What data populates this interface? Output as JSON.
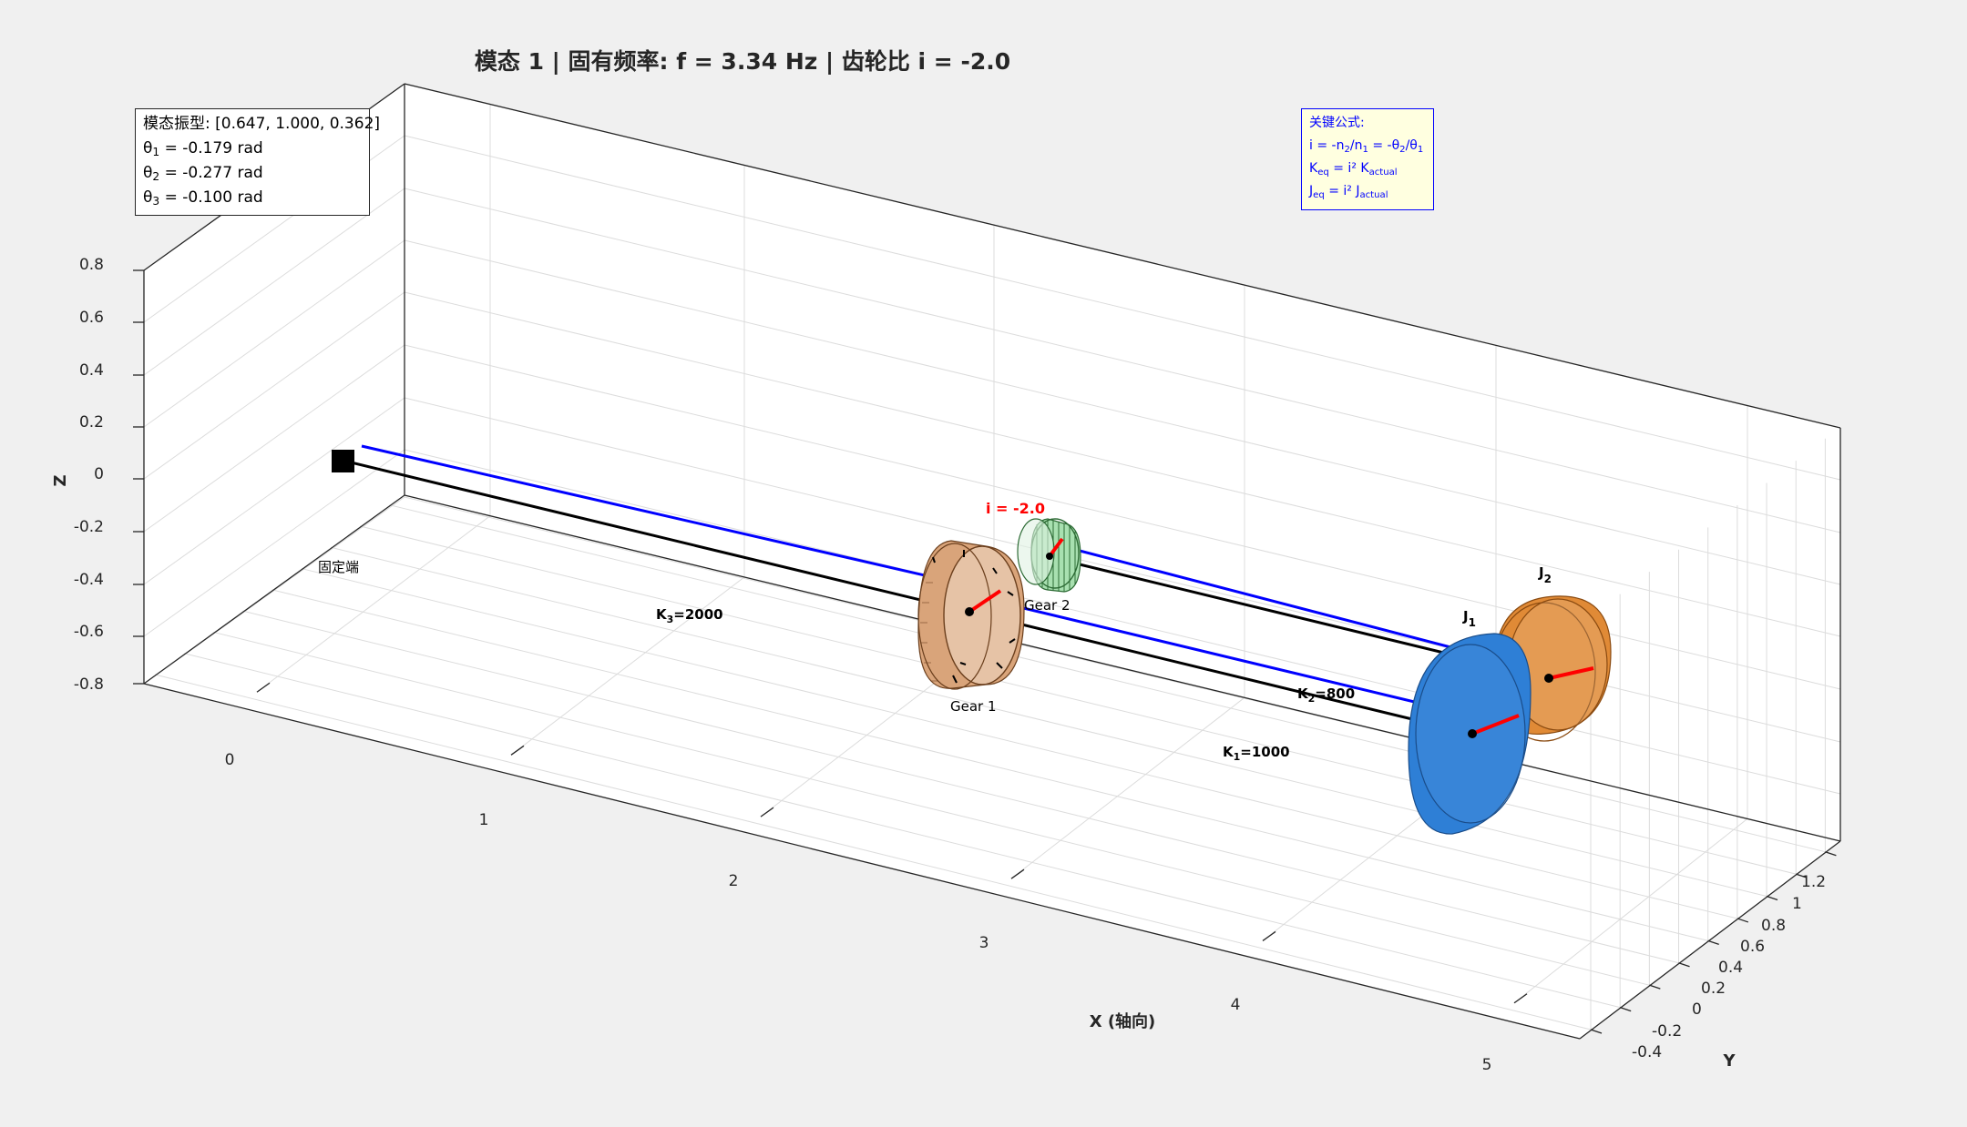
{
  "title": "模态 1 | 固有频率: f = 3.34 Hz | 齿轮比 i = -2.0",
  "info_box": {
    "mode_shape": "模态振型: [0.647, 1.000, 0.362]",
    "rows": [
      {
        "sym": "θ",
        "sub": "1",
        "val": " = -0.179 rad"
      },
      {
        "sym": "θ",
        "sub": "2",
        "val": " = -0.277 rad"
      },
      {
        "sym": "θ",
        "sub": "3",
        "val": " = -0.100 rad"
      }
    ]
  },
  "formula_box": {
    "title": "关键公式:",
    "lines": [
      [
        [
          "",
          "i = -n"
        ],
        [
          "sub",
          "2"
        ],
        [
          "",
          "/n"
        ],
        [
          "sub",
          "1"
        ],
        [
          "",
          " = -θ"
        ],
        [
          "sub",
          "2"
        ],
        [
          "",
          "/θ"
        ],
        [
          "sub",
          "1"
        ]
      ],
      [
        [
          "",
          "K"
        ],
        [
          "sub",
          "eq"
        ],
        [
          "",
          " = i² K"
        ],
        [
          "sub",
          "actual"
        ]
      ],
      [
        [
          "",
          "J"
        ],
        [
          "sub",
          "eq"
        ],
        [
          "",
          " = i² J"
        ],
        [
          "sub",
          "actual"
        ]
      ]
    ]
  },
  "axes": {
    "x_label": "X (轴向)",
    "y_label": "Y",
    "z_label": "Z",
    "x_ticks": [
      "0",
      "1",
      "2",
      "3",
      "4",
      "5"
    ],
    "y_ticks": [
      "-0.4",
      "-0.2",
      "0",
      "0.2",
      "0.4",
      "0.6",
      "0.8",
      "1",
      "1.2"
    ],
    "z_ticks": [
      "0.8",
      "0.6",
      "0.4",
      "0.2",
      "0",
      "-0.2",
      "-0.4",
      "-0.6",
      "-0.8"
    ]
  },
  "labels": {
    "fixed_end": "固定端",
    "k3": [
      "K",
      "3",
      "=2000"
    ],
    "k2": [
      "K",
      "2",
      "=800"
    ],
    "k1": [
      "K",
      "1",
      "=1000"
    ],
    "gear1": "Gear 1",
    "gear2": "Gear 2",
    "ratio": "i = -2.0",
    "j1": [
      "J",
      "1"
    ],
    "j2": [
      "J",
      "2"
    ]
  },
  "colors": {
    "blue_shaft": "#0000ff",
    "black_shaft": "#000000",
    "gear1": "#d9a47a",
    "gear2": "#a8e0b0",
    "j1": "#2e7fd6",
    "j2": "#e08a36",
    "rotation_marker": "#ff0000",
    "ratio_label": "#ff0000"
  },
  "chart_data": {
    "type": "3d-line",
    "title": "模态 1 | 固有频率: f = 3.34 Hz | 齿轮比 i = -2.0",
    "xlabel": "X (轴向)",
    "ylabel": "Y",
    "zlabel": "Z",
    "xlim": [
      0,
      5.5
    ],
    "ylim": [
      -0.5,
      1.3
    ],
    "zlim": [
      -0.8,
      0.8
    ],
    "grid": true,
    "natural_frequency_hz": 3.34,
    "gear_ratio": -2.0,
    "mode_shape": [
      0.647,
      1.0,
      0.362
    ],
    "theta_rad": [
      -0.179,
      -0.277,
      -0.1
    ],
    "stiffness": {
      "K1": 1000,
      "K2": 800,
      "K3": 2000
    },
    "components": [
      "固定端",
      "Gear 1",
      "Gear 2",
      "J1",
      "J2"
    ]
  }
}
